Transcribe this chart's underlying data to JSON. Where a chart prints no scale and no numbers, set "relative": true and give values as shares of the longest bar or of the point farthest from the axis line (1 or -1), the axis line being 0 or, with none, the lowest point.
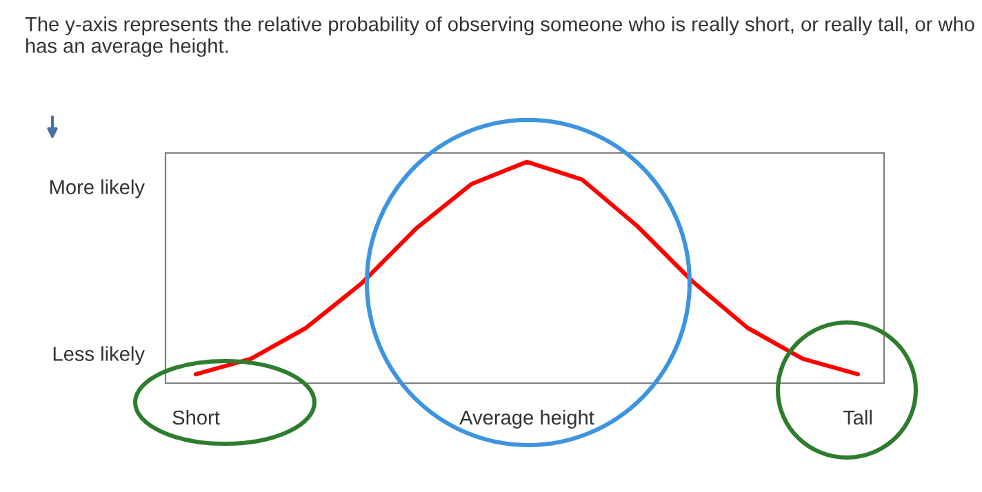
{
  "chart_data": {
    "type": "line",
    "title": "The y-axis represents the relative probability of observing someone who is really short, or really tall, or who has an average height.",
    "categories": [
      "Short",
      null,
      null,
      null,
      null,
      null,
      "Average height",
      null,
      null,
      null,
      null,
      null,
      "Tall"
    ],
    "relative": true,
    "series": [
      {
        "color": "#ff0000",
        "values": [
          0.04,
          0.11,
          0.25,
          0.45,
          0.7,
          0.9,
          1.0,
          0.92,
          0.71,
          0.46,
          0.25,
          0.11,
          0.04
        ]
      }
    ],
    "annotations": [
      "More likely",
      "Less likely"
    ],
    "marker": "none",
    "line_style": "solid",
    "grid": false,
    "legend": false
  }
}
